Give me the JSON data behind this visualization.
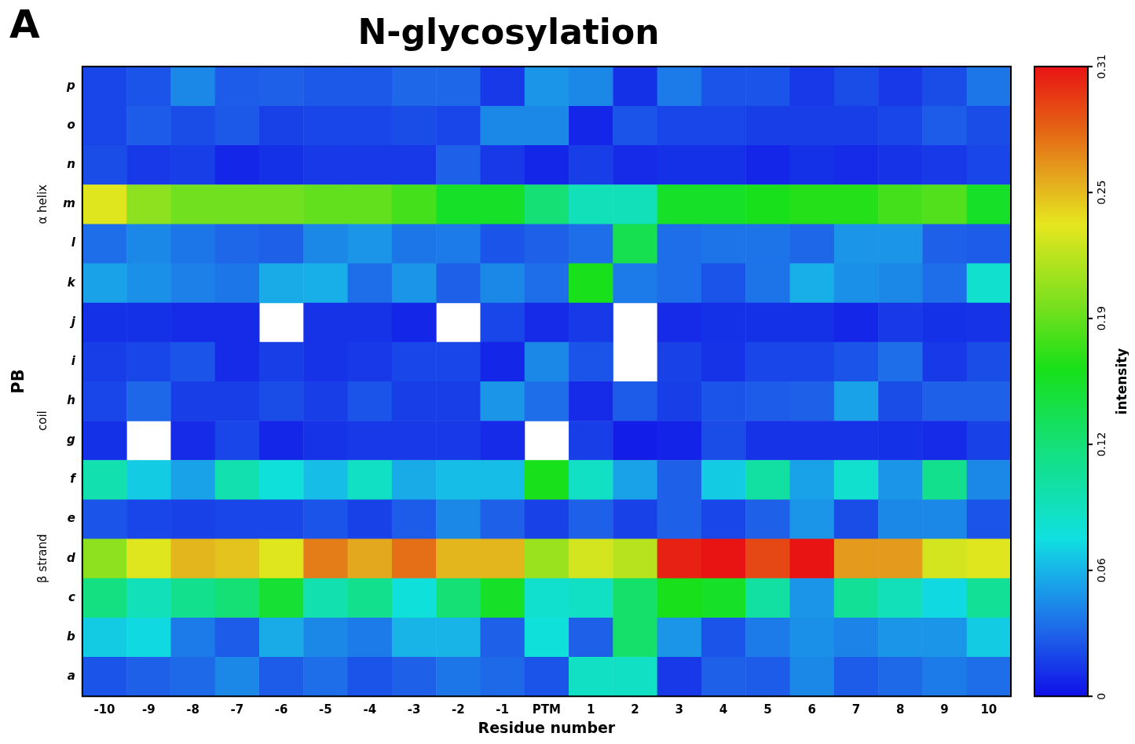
{
  "chart_data": {
    "type": "heatmap",
    "title": "N-glycosylation",
    "xlabel": "Residue number",
    "ylabel": "PB",
    "clabel": "intensity",
    "annotations": [
      "A",
      "α helix",
      "coil",
      "β strand"
    ],
    "categories": [
      "-10",
      "-9",
      "-8",
      "-7",
      "-6",
      "-5",
      "-4",
      "-3",
      "-2",
      "-1",
      "PTM",
      "1",
      "2",
      "3",
      "4",
      "5",
      "6",
      "7",
      "8",
      "9",
      "10"
    ],
    "y_categories": [
      "p",
      "o",
      "n",
      "m",
      "l",
      "k",
      "j",
      "i",
      "h",
      "g",
      "f",
      "e",
      "d",
      "c",
      "b",
      "a"
    ],
    "cells": [
      [
        0.02,
        0.025,
        0.045,
        0.028,
        0.03,
        0.027,
        0.027,
        0.032,
        0.032,
        0.015,
        0.05,
        0.045,
        0.012,
        0.04,
        0.025,
        0.025,
        0.015,
        0.022,
        0.015,
        0.022,
        0.038
      ],
      [
        0.02,
        0.028,
        0.022,
        0.027,
        0.018,
        0.02,
        0.02,
        0.022,
        0.02,
        0.045,
        0.045,
        0.008,
        0.025,
        0.02,
        0.02,
        0.017,
        0.017,
        0.017,
        0.02,
        0.028,
        0.022
      ],
      [
        0.022,
        0.015,
        0.017,
        0.008,
        0.012,
        0.015,
        0.015,
        0.015,
        0.03,
        0.015,
        0.008,
        0.017,
        0.01,
        0.012,
        0.012,
        0.008,
        0.012,
        0.01,
        0.013,
        0.015,
        0.02
      ],
      [
        0.23,
        0.2,
        0.19,
        0.19,
        0.19,
        0.185,
        0.185,
        0.175,
        0.155,
        0.155,
        0.125,
        0.095,
        0.095,
        0.155,
        0.155,
        0.16,
        0.165,
        0.165,
        0.175,
        0.18,
        0.155
      ],
      [
        0.035,
        0.045,
        0.038,
        0.032,
        0.03,
        0.045,
        0.05,
        0.038,
        0.04,
        0.025,
        0.03,
        0.035,
        0.14,
        0.035,
        0.037,
        0.037,
        0.032,
        0.05,
        0.05,
        0.03,
        0.028
      ],
      [
        0.055,
        0.048,
        0.042,
        0.038,
        0.058,
        0.06,
        0.035,
        0.05,
        0.03,
        0.045,
        0.035,
        0.16,
        0.04,
        0.035,
        0.025,
        0.037,
        0.06,
        0.048,
        0.045,
        0.035,
        0.085
      ],
      [
        0.012,
        0.012,
        0.01,
        0.01,
        null,
        0.013,
        0.013,
        0.008,
        null,
        0.02,
        0.01,
        0.015,
        null,
        0.01,
        0.012,
        0.012,
        0.012,
        0.008,
        0.015,
        0.012,
        0.013
      ],
      [
        0.017,
        0.02,
        0.025,
        0.01,
        0.017,
        0.013,
        0.015,
        0.02,
        0.02,
        0.008,
        0.045,
        0.025,
        null,
        0.018,
        0.013,
        0.02,
        0.02,
        0.025,
        0.035,
        0.015,
        0.022
      ],
      [
        0.02,
        0.032,
        0.017,
        0.017,
        0.022,
        0.017,
        0.025,
        0.017,
        0.017,
        0.05,
        0.035,
        0.01,
        0.028,
        0.017,
        0.025,
        0.028,
        0.03,
        0.055,
        0.022,
        0.03,
        0.03
      ],
      [
        0.012,
        null,
        0.01,
        0.02,
        0.008,
        0.013,
        0.015,
        0.015,
        0.015,
        0.01,
        null,
        0.017,
        0.005,
        0.007,
        0.022,
        0.013,
        0.013,
        0.013,
        0.012,
        0.01,
        0.018
      ],
      [
        0.1,
        0.07,
        0.055,
        0.1,
        0.08,
        0.065,
        0.09,
        0.058,
        0.065,
        0.065,
        0.16,
        0.09,
        0.055,
        0.03,
        0.07,
        0.105,
        0.055,
        0.085,
        0.05,
        0.115,
        0.045
      ],
      [
        0.025,
        0.02,
        0.018,
        0.02,
        0.02,
        0.025,
        0.018,
        0.028,
        0.045,
        0.03,
        0.018,
        0.03,
        0.018,
        0.03,
        0.02,
        0.03,
        0.05,
        0.022,
        0.045,
        0.045,
        0.025
      ],
      [
        0.2,
        0.23,
        0.25,
        0.245,
        0.23,
        0.27,
        0.255,
        0.275,
        0.25,
        0.25,
        0.205,
        0.225,
        0.215,
        0.305,
        0.31,
        0.29,
        0.31,
        0.26,
        0.26,
        0.225,
        0.23
      ],
      [
        0.12,
        0.095,
        0.115,
        0.125,
        0.15,
        0.1,
        0.115,
        0.08,
        0.125,
        0.155,
        0.085,
        0.09,
        0.13,
        0.16,
        0.155,
        0.105,
        0.05,
        0.11,
        0.095,
        0.075,
        0.11
      ],
      [
        0.07,
        0.075,
        0.04,
        0.028,
        0.058,
        0.045,
        0.04,
        0.062,
        0.062,
        0.03,
        0.08,
        0.03,
        0.13,
        0.05,
        0.025,
        0.04,
        0.048,
        0.043,
        0.05,
        0.05,
        0.07
      ],
      [
        0.025,
        0.03,
        0.033,
        0.045,
        0.028,
        0.035,
        0.025,
        0.03,
        0.038,
        0.033,
        0.025,
        0.09,
        0.09,
        0.015,
        0.03,
        0.028,
        0.045,
        0.028,
        0.033,
        0.04,
        0.035
      ]
    ],
    "clim": [
      0,
      0.31
    ],
    "cticks": [
      0,
      {
        "value": 0.062,
        "label": "0.06"
      },
      {
        "value": 0.124,
        "label": "0.12"
      },
      {
        "value": 0.186,
        "label": "0.19"
      },
      {
        "value": 0.248,
        "label": "0.25"
      },
      0.31
    ]
  }
}
